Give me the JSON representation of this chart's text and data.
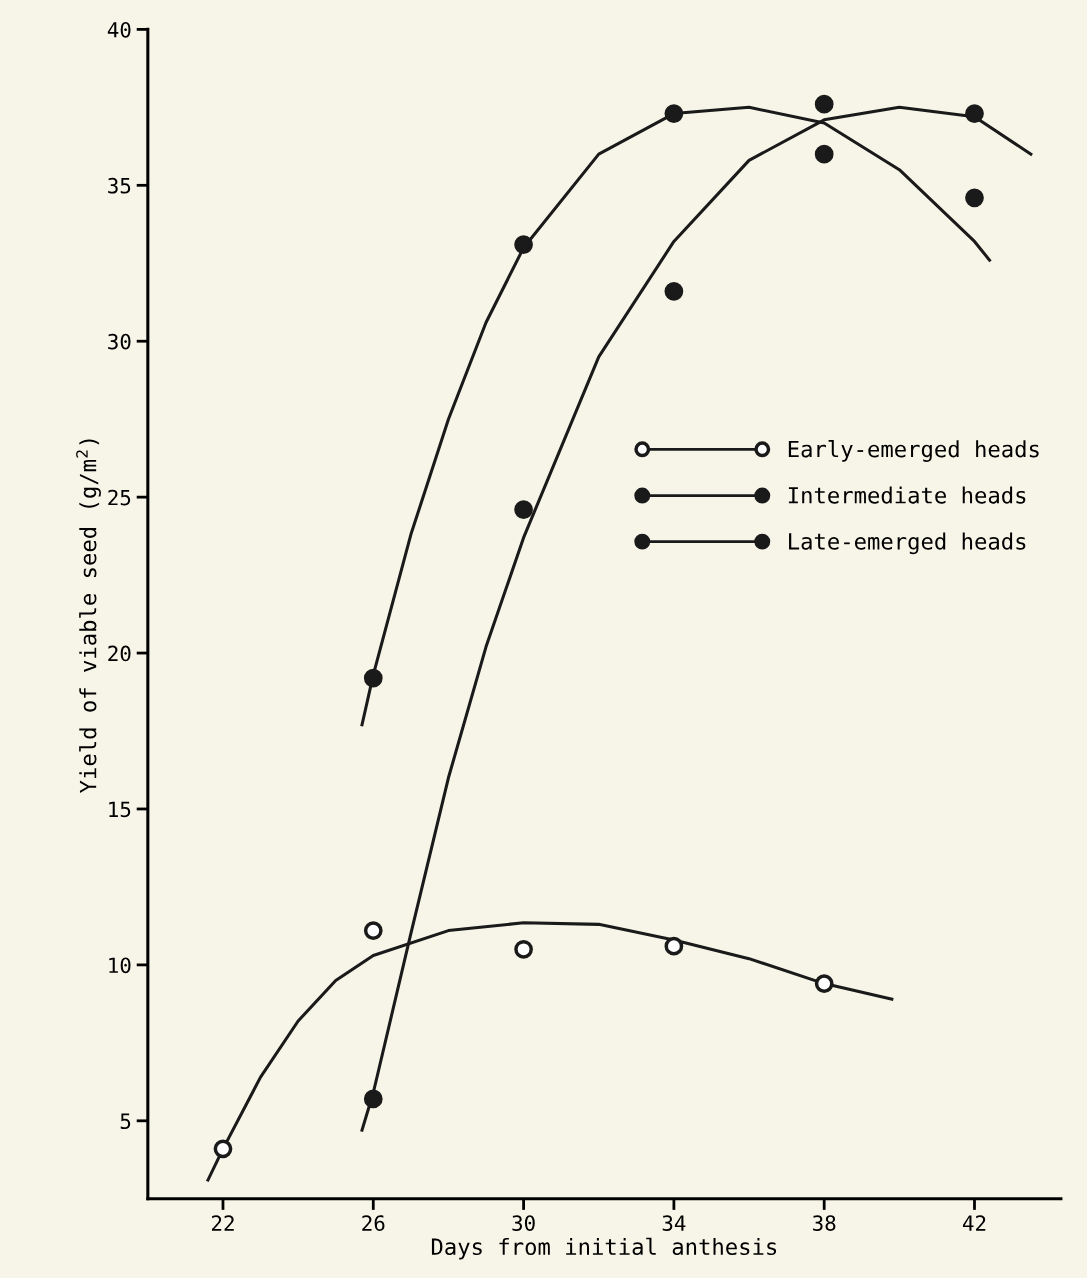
{
  "chart_data": {
    "type": "scatter",
    "xlabel": "Days from initial anthesis",
    "ylabel": "Yield of viable seed (g/m$^{2}$)",
    "xlim": [
      20,
      44.3
    ],
    "ylim": [
      2.5,
      40
    ],
    "xticks": [
      22,
      26,
      30,
      34,
      38,
      42
    ],
    "yticks": [
      5,
      10,
      15,
      20,
      25,
      30,
      35,
      40
    ],
    "grid": false,
    "legend": "right",
    "series": [
      {
        "name": "Early-emerged heads",
        "marker": "circle",
        "color": "#ffffff",
        "x": [
          22,
          26,
          30,
          34,
          38
        ],
        "values": [
          4.1,
          11.1,
          10.5,
          10.6,
          9.4
        ]
      },
      {
        "name": "Intermediate heads",
        "marker": "circle",
        "color": "#1a1a1a",
        "x": [
          26,
          30,
          34,
          38,
          42
        ],
        "values": [
          19.2,
          33.1,
          37.3,
          36.0,
          34.6
        ]
      },
      {
        "name": "Late-emerged heads",
        "marker": "circle",
        "color": "#1a1a1a",
        "x": [
          26,
          30,
          34,
          38,
          42
        ],
        "values": [
          5.7,
          24.6,
          31.6,
          37.6,
          37.3
        ]
      },
      {
        "type": "line",
        "marker": "none",
        "color": "#1a1a1a",
        "x": [
          21.6,
          22,
          23,
          24,
          25,
          26,
          28,
          30,
          32,
          34,
          36,
          38,
          39.8
        ],
        "values": [
          3.1,
          4.1,
          6.4,
          8.2,
          9.5,
          10.3,
          11.1,
          11.35,
          11.3,
          10.8,
          10.2,
          9.4,
          8.9
        ]
      },
      {
        "type": "line",
        "marker": "none",
        "color": "#1a1a1a",
        "x": [
          25.7,
          26,
          27,
          28,
          29,
          30,
          32,
          34,
          36,
          38,
          40,
          42,
          42.4
        ],
        "values": [
          17.7,
          19.3,
          23.8,
          27.5,
          30.6,
          33.0,
          36.0,
          37.3,
          37.5,
          37.0,
          35.5,
          33.2,
          32.6
        ]
      },
      {
        "type": "line",
        "marker": "none",
        "color": "#1a1a1a",
        "x": [
          25.7,
          26,
          27,
          28,
          29,
          30,
          32,
          34,
          36,
          38,
          40,
          42,
          43.5
        ],
        "values": [
          4.7,
          5.9,
          11.0,
          16.0,
          20.2,
          23.7,
          29.5,
          33.2,
          35.8,
          37.1,
          37.5,
          37.2,
          36.0
        ]
      }
    ]
  }
}
